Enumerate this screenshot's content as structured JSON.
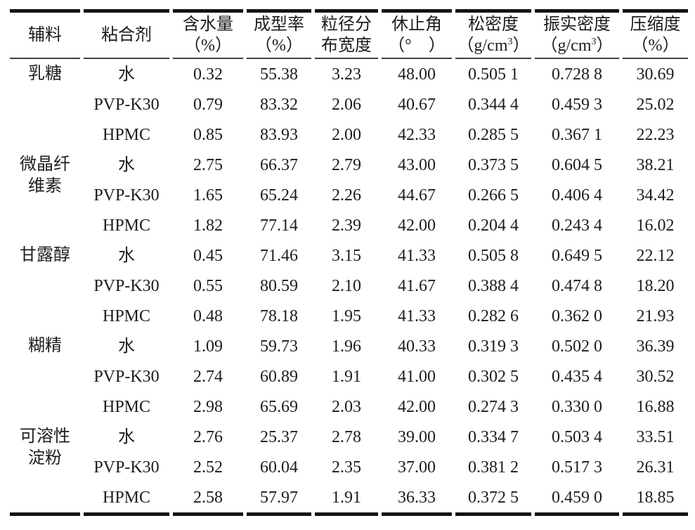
{
  "colors": {
    "text": "#1c1c1c",
    "thick_rule": "#141414",
    "thin_rule": "#3f3f3f",
    "background": "#ffffff"
  },
  "table": {
    "columns": [
      {
        "l1": "辅料"
      },
      {
        "l1": "粘合剂"
      },
      {
        "l1": "含水量",
        "l2": "（%）"
      },
      {
        "l1": "成型率",
        "l2": "（%）"
      },
      {
        "l1": "粒径分",
        "l2": "布宽度"
      },
      {
        "l1": "休止角",
        "l2": "（°　）"
      },
      {
        "l1": "松密度",
        "l2_pre": "（g/cm",
        "l2_sup": "3",
        "l2_post": "）"
      },
      {
        "l1": "振实密度",
        "l2_pre": "（g/cm",
        "l2_sup": "3",
        "l2_post": "）"
      },
      {
        "l1": "压缩度",
        "l2": "（%）"
      }
    ],
    "groups": [
      {
        "excipient_lines": [
          "乳糖"
        ],
        "rows": [
          {
            "binder": "水",
            "values": [
              "0.32",
              "55.38",
              "3.23",
              "48.00",
              "0.505 1",
              "0.728 8",
              "30.69"
            ]
          },
          {
            "binder": "PVP-K30",
            "values": [
              "0.79",
              "83.32",
              "2.06",
              "40.67",
              "0.344 4",
              "0.459 3",
              "25.02"
            ]
          },
          {
            "binder": "HPMC",
            "values": [
              "0.85",
              "83.93",
              "2.00",
              "42.33",
              "0.285 5",
              "0.367 1",
              "22.23"
            ]
          }
        ]
      },
      {
        "excipient_lines": [
          "微晶纤",
          "维素"
        ],
        "rows": [
          {
            "binder": "水",
            "values": [
              "2.75",
              "66.37",
              "2.79",
              "43.00",
              "0.373 5",
              "0.604 5",
              "38.21"
            ]
          },
          {
            "binder": "PVP-K30",
            "values": [
              "1.65",
              "65.24",
              "2.26",
              "44.67",
              "0.266 5",
              "0.406 4",
              "34.42"
            ]
          },
          {
            "binder": "HPMC",
            "values": [
              "1.82",
              "77.14",
              "2.39",
              "42.00",
              "0.204 4",
              "0.243 4",
              "16.02"
            ]
          }
        ]
      },
      {
        "excipient_lines": [
          "甘露醇"
        ],
        "rows": [
          {
            "binder": "水",
            "values": [
              "0.45",
              "71.46",
              "3.15",
              "41.33",
              "0.505 8",
              "0.649 5",
              "22.12"
            ]
          },
          {
            "binder": "PVP-K30",
            "values": [
              "0.55",
              "80.59",
              "2.10",
              "41.67",
              "0.388 4",
              "0.474 8",
              "18.20"
            ]
          },
          {
            "binder": "HPMC",
            "values": [
              "0.48",
              "78.18",
              "1.95",
              "41.33",
              "0.282 6",
              "0.362 0",
              "21.93"
            ]
          }
        ]
      },
      {
        "excipient_lines": [
          "糊精"
        ],
        "rows": [
          {
            "binder": "水",
            "values": [
              "1.09",
              "59.73",
              "1.96",
              "40.33",
              "0.319 3",
              "0.502 0",
              "36.39"
            ]
          },
          {
            "binder": "PVP-K30",
            "values": [
              "2.74",
              "60.89",
              "1.91",
              "41.00",
              "0.302 5",
              "0.435 4",
              "30.52"
            ]
          },
          {
            "binder": "HPMC",
            "values": [
              "2.98",
              "65.69",
              "2.03",
              "42.00",
              "0.274 3",
              "0.330 0",
              "16.88"
            ]
          }
        ]
      },
      {
        "excipient_lines": [
          "可溶性",
          "淀粉"
        ],
        "rows": [
          {
            "binder": "水",
            "values": [
              "2.76",
              "25.37",
              "2.78",
              "39.00",
              "0.334 7",
              "0.503 4",
              "33.51"
            ]
          },
          {
            "binder": "PVP-K30",
            "values": [
              "2.52",
              "60.04",
              "2.35",
              "37.00",
              "0.381 2",
              "0.517 3",
              "26.31"
            ]
          },
          {
            "binder": "HPMC",
            "values": [
              "2.58",
              "57.97",
              "1.91",
              "36.33",
              "0.372 5",
              "0.459 0",
              "18.85"
            ]
          }
        ]
      }
    ]
  }
}
